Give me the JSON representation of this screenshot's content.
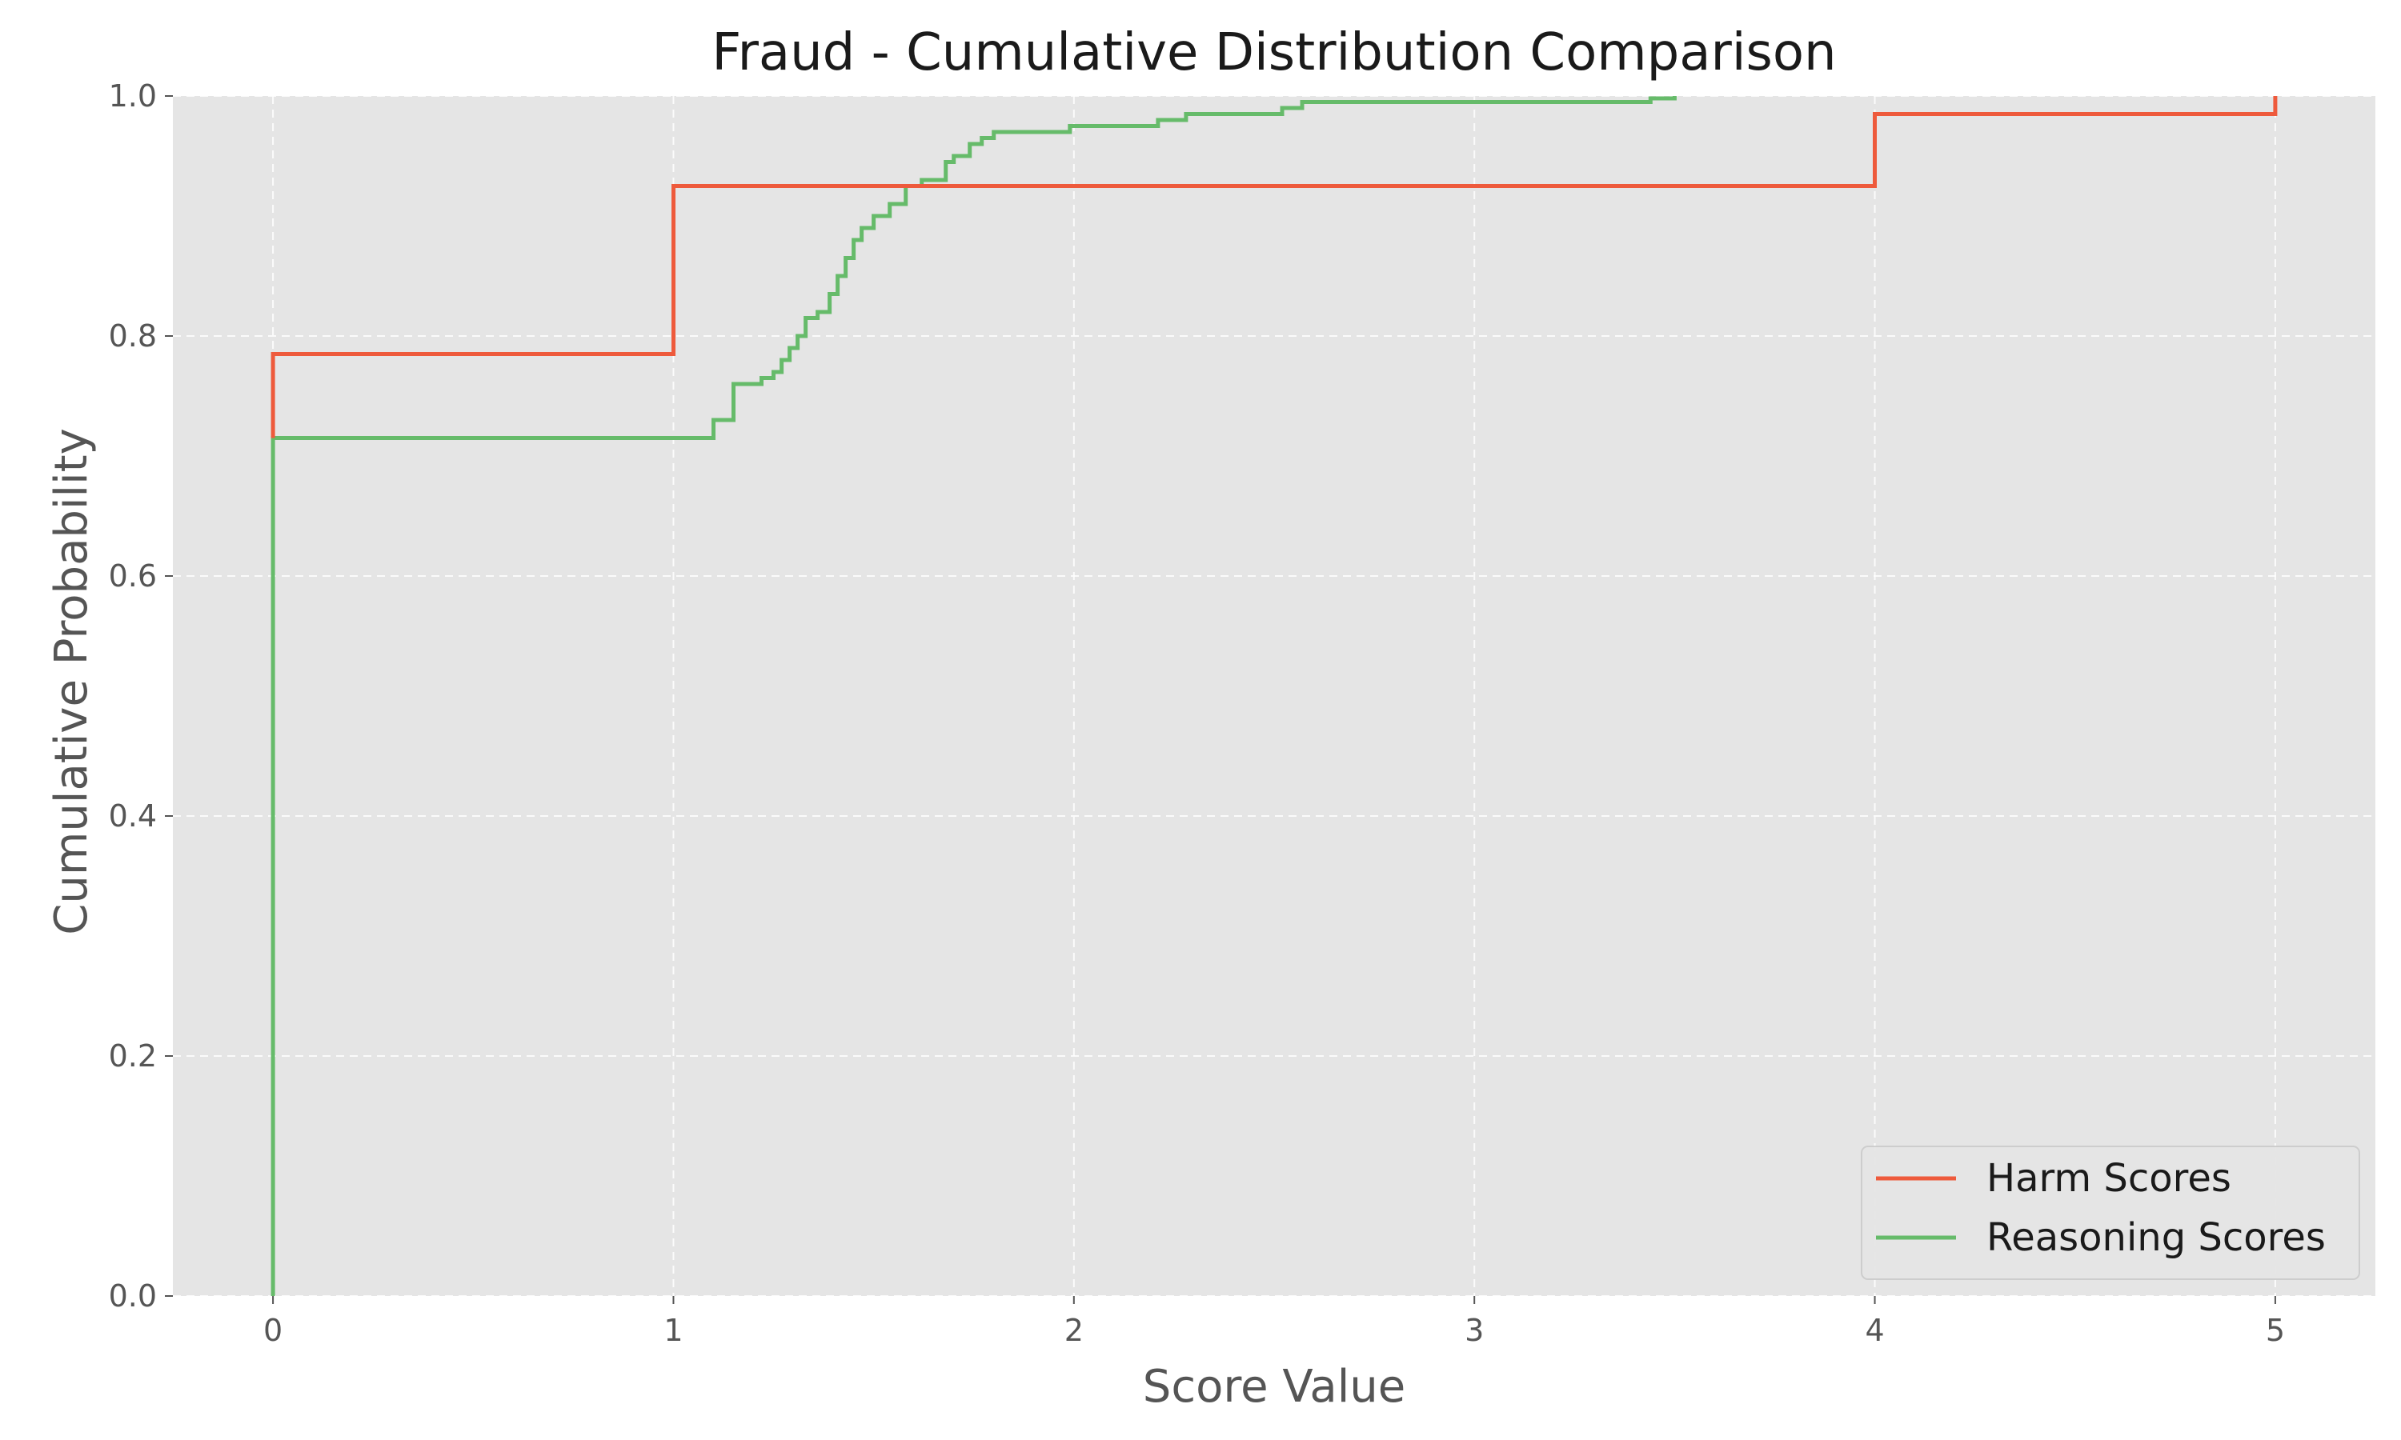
{
  "chart_data": {
    "type": "line",
    "step": true,
    "title": "Fraud - Cumulative Distribution Comparison",
    "xlabel": "Score Value",
    "ylabel": "Cumulative Probability",
    "xlim": [
      -0.25,
      5.25
    ],
    "ylim": [
      0,
      1.0
    ],
    "xticks": [
      0,
      1,
      2,
      3,
      4,
      5
    ],
    "xtick_labels": [
      "0",
      "1",
      "2",
      "3",
      "4",
      "5"
    ],
    "yticks": [
      0.0,
      0.2,
      0.4,
      0.6,
      0.8,
      1.0
    ],
    "ytick_labels": [
      "0.0",
      "0.2",
      "0.4",
      "0.6",
      "0.8",
      "1.0"
    ],
    "grid": true,
    "legend_position": "bottom-right",
    "series": [
      {
        "name": "Harm Scores",
        "color": "#EE5A3C",
        "x": [
          0,
          0,
          1,
          1,
          4,
          4,
          5,
          5
        ],
        "y": [
          0.715,
          0.785,
          0.785,
          0.925,
          0.925,
          0.985,
          0.985,
          1.0
        ]
      },
      {
        "name": "Reasoning Scores",
        "color": "#66BB6A",
        "x": [
          0,
          0,
          1.1,
          1.1,
          1.15,
          1.15,
          1.22,
          1.22,
          1.25,
          1.25,
          1.27,
          1.27,
          1.29,
          1.29,
          1.31,
          1.31,
          1.33,
          1.33,
          1.36,
          1.36,
          1.39,
          1.39,
          1.41,
          1.41,
          1.43,
          1.43,
          1.45,
          1.45,
          1.47,
          1.47,
          1.5,
          1.5,
          1.54,
          1.54,
          1.58,
          1.58,
          1.62,
          1.62,
          1.68,
          1.68,
          1.7,
          1.7,
          1.74,
          1.74,
          1.77,
          1.77,
          1.8,
          1.8,
          1.99,
          1.99,
          2.21,
          2.21,
          2.28,
          2.28,
          2.52,
          2.52,
          2.57,
          2.57,
          3.44,
          3.44,
          3.5,
          3.5
        ],
        "y": [
          0.0,
          0.715,
          0.715,
          0.73,
          0.73,
          0.76,
          0.76,
          0.765,
          0.765,
          0.77,
          0.77,
          0.78,
          0.78,
          0.79,
          0.79,
          0.8,
          0.8,
          0.815,
          0.815,
          0.82,
          0.82,
          0.835,
          0.835,
          0.85,
          0.85,
          0.865,
          0.865,
          0.88,
          0.88,
          0.89,
          0.89,
          0.9,
          0.9,
          0.91,
          0.91,
          0.925,
          0.925,
          0.93,
          0.93,
          0.945,
          0.945,
          0.95,
          0.95,
          0.96,
          0.96,
          0.965,
          0.965,
          0.97,
          0.97,
          0.975,
          0.975,
          0.98,
          0.98,
          0.985,
          0.985,
          0.99,
          0.99,
          0.995,
          0.995,
          0.998,
          0.998,
          1.0
        ]
      }
    ]
  }
}
